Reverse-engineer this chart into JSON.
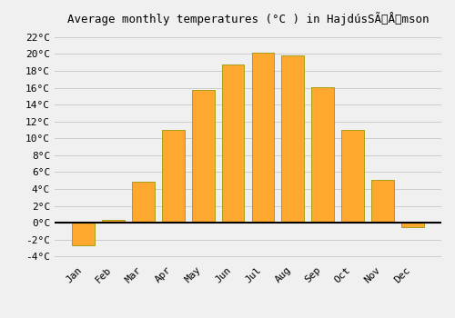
{
  "title": "Average monthly temperatures (°C ) in HajdúsSÃÅmson",
  "months": [
    "Jan",
    "Feb",
    "Mar",
    "Apr",
    "May",
    "Jun",
    "Jul",
    "Aug",
    "Sep",
    "Oct",
    "Nov",
    "Dec"
  ],
  "values": [
    -2.7,
    0.3,
    4.9,
    11.0,
    15.7,
    18.8,
    20.2,
    19.8,
    16.1,
    11.0,
    5.1,
    -0.5
  ],
  "bar_color": "#FFA830",
  "bar_edge_color": "#999900",
  "background_color": "#f0f0f0",
  "grid_color": "#cccccc",
  "ylim": [
    -4.5,
    23
  ],
  "yticks": [
    -4,
    -2,
    0,
    2,
    4,
    6,
    8,
    10,
    12,
    14,
    16,
    18,
    20,
    22
  ],
  "zero_line_color": "#000000",
  "font_size": 8,
  "title_font_size": 9
}
